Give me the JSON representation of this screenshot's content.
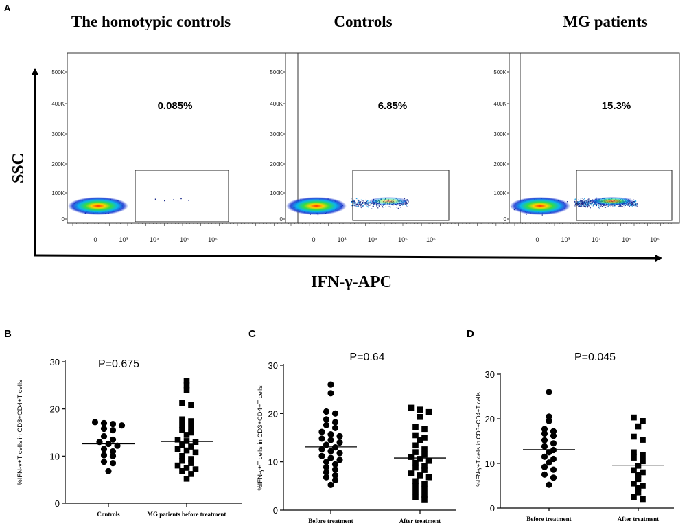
{
  "panel_letters": {
    "a": "A",
    "b": "B",
    "c": "C",
    "d": "D"
  },
  "panel_a": {
    "titles": [
      "The homotypic controls",
      "Controls",
      "MG patients"
    ],
    "y_axis_label": "SSC",
    "x_axis_label": "IFN-γ-APC"
  },
  "chart_data": [
    {
      "id": "A1",
      "type": "scatter",
      "subtype": "flow-cytometry-density",
      "title": "The homotypic controls",
      "gate_percent": "0.085%",
      "ylabel": "SSC",
      "xlabel": "IFN-γ-APC",
      "y_ticks": [
        "0",
        "100K",
        "200K",
        "300K",
        "400K",
        "500K"
      ],
      "x_ticks": [
        "0",
        "10³",
        "10⁴",
        "10⁵",
        "10⁶"
      ],
      "positive_tail": 0.0,
      "positive_sparse": [
        [
          0.4,
          0.75
        ],
        [
          1.0,
          1.1
        ],
        [
          1.6,
          0.9
        ],
        [
          2.1,
          0.6
        ],
        [
          2.6,
          1.0
        ]
      ]
    },
    {
      "id": "A2",
      "type": "scatter",
      "subtype": "flow-cytometry-density",
      "title": "Controls",
      "gate_percent": "6.85%",
      "ylabel": "SSC",
      "xlabel": "IFN-γ-APC",
      "y_ticks": [
        "0",
        "100K",
        "200K",
        "300K",
        "400K",
        "500K"
      ],
      "x_ticks": [
        "0",
        "10³",
        "10⁴",
        "10⁵",
        "10⁶"
      ],
      "positive_tail": 0.45,
      "positive_sparse": []
    },
    {
      "id": "A3",
      "type": "scatter",
      "subtype": "flow-cytometry-density",
      "title": "MG patients",
      "gate_percent": "15.3%",
      "ylabel": "SSC",
      "xlabel": "IFN-γ-APC",
      "y_ticks": [
        "0",
        "100K",
        "200K",
        "300K",
        "400K",
        "500K"
      ],
      "x_ticks": [
        "0",
        "10³",
        "10⁴",
        "10⁵",
        "10⁶"
      ],
      "positive_tail": 0.8,
      "positive_sparse": []
    },
    {
      "id": "B",
      "type": "scatter",
      "subtype": "dot-plot",
      "p_value": "P=0.675",
      "ylabel": "%IFN-γ+T cells in CD3+CD4+T cells",
      "ylim": [
        0,
        30
      ],
      "y_ticks": [
        0,
        10,
        20,
        30
      ],
      "categories": [
        "Controls",
        "MG patients before treatment"
      ],
      "series": [
        {
          "name": "Controls",
          "marker": "circle",
          "mean": 12.6,
          "values": [
            17.2,
            17.0,
            16.8,
            16.5,
            15.8,
            15.5,
            14.2,
            13.5,
            13.0,
            12.6,
            12.2,
            11.5,
            11.0,
            10.2,
            10.0,
            8.8,
            8.5,
            6.8
          ]
        },
        {
          "name": "MG patients before treatment",
          "marker": "square",
          "mean": 13.1,
          "values": [
            26.0,
            25.0,
            24.0,
            21.3,
            20.8,
            17.8,
            17.4,
            16.6,
            16.2,
            15.5,
            15.0,
            14.5,
            13.5,
            13.2,
            13.0,
            12.4,
            12.0,
            11.5,
            11.2,
            10.8,
            10.0,
            9.4,
            9.0,
            8.5,
            8.0,
            7.5,
            7.2,
            6.8,
            6.2,
            5.2
          ]
        }
      ]
    },
    {
      "id": "C",
      "type": "scatter",
      "subtype": "dot-plot",
      "p_value": "P=0.64",
      "ylabel": "%IFN-γ+T cells in CD3+CD4+T cells",
      "ylim": [
        0,
        30
      ],
      "y_ticks": [
        0,
        10,
        20,
        30
      ],
      "categories": [
        "Before treatment",
        "After treatment"
      ],
      "series": [
        {
          "name": "Before treatment",
          "marker": "circle",
          "mean": 13.1,
          "values": [
            26.0,
            24.2,
            20.4,
            20.0,
            18.8,
            18.2,
            17.6,
            17.0,
            16.2,
            15.7,
            15.3,
            14.8,
            14.5,
            14.0,
            13.5,
            13.0,
            12.6,
            12.2,
            11.8,
            11.2,
            10.8,
            10.4,
            10.0,
            9.5,
            8.9,
            8.4,
            7.8,
            7.2,
            6.8,
            6.2,
            5.2
          ]
        },
        {
          "name": "After treatment",
          "marker": "square",
          "mean": 10.8,
          "values": [
            21.2,
            20.8,
            20.3,
            19.3,
            17.2,
            16.8,
            15.5,
            15.0,
            14.5,
            13.4,
            12.6,
            12.0,
            11.5,
            11.0,
            10.6,
            10.2,
            9.8,
            9.2,
            8.8,
            8.3,
            7.6,
            7.2,
            6.8,
            6.0,
            5.5,
            4.9,
            4.4,
            3.8,
            3.2,
            2.6,
            2.2
          ]
        }
      ]
    },
    {
      "id": "D",
      "type": "scatter",
      "subtype": "dot-plot",
      "p_value": "P=0.045",
      "ylabel": "%IFN-γ+T cells in CD3+CD4+T cells",
      "ylim": [
        0,
        30
      ],
      "y_ticks": [
        0,
        10,
        20,
        30
      ],
      "categories": [
        "Before treatment",
        "After treatment"
      ],
      "series": [
        {
          "name": "Before treatment",
          "marker": "circle",
          "mean": 13.1,
          "values": [
            26.0,
            20.5,
            19.5,
            17.7,
            17.2,
            16.7,
            16.2,
            15.2,
            14.5,
            13.8,
            13.0,
            12.5,
            11.5,
            11.0,
            10.2,
            9.2,
            8.6,
            7.5,
            6.8,
            5.2
          ]
        },
        {
          "name": "After treatment",
          "marker": "square",
          "mean": 9.6,
          "values": [
            20.3,
            19.5,
            18.3,
            16.0,
            15.3,
            12.5,
            11.8,
            11.3,
            10.5,
            9.5,
            8.5,
            8.0,
            7.5,
            6.5,
            5.5,
            5.0,
            4.5,
            3.5,
            2.5,
            2.0
          ]
        }
      ]
    }
  ]
}
